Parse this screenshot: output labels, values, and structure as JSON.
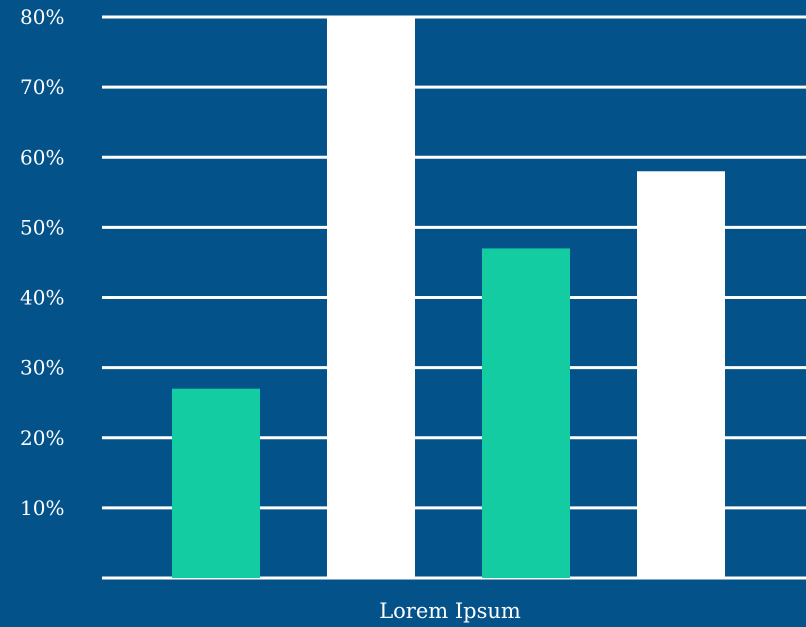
{
  "colors": {
    "background": "#03528a",
    "grid": "#ffffff",
    "teal": "#14cca1",
    "white": "#ffffff",
    "text": "#ffffff"
  },
  "chart_data": {
    "type": "bar",
    "xlabel": "Lorem Ipsum",
    "ylim": [
      0,
      80
    ],
    "yticks": [
      10,
      20,
      30,
      40,
      50,
      60,
      70,
      80
    ],
    "ytick_labels": [
      "10%",
      "20%",
      "30%",
      "40%",
      "50%",
      "60%",
      "70%",
      "80%"
    ],
    "grid": true,
    "values": [
      27,
      80,
      47,
      58
    ],
    "bar_colors": [
      "#14cca1",
      "#ffffff",
      "#14cca1",
      "#ffffff"
    ]
  }
}
